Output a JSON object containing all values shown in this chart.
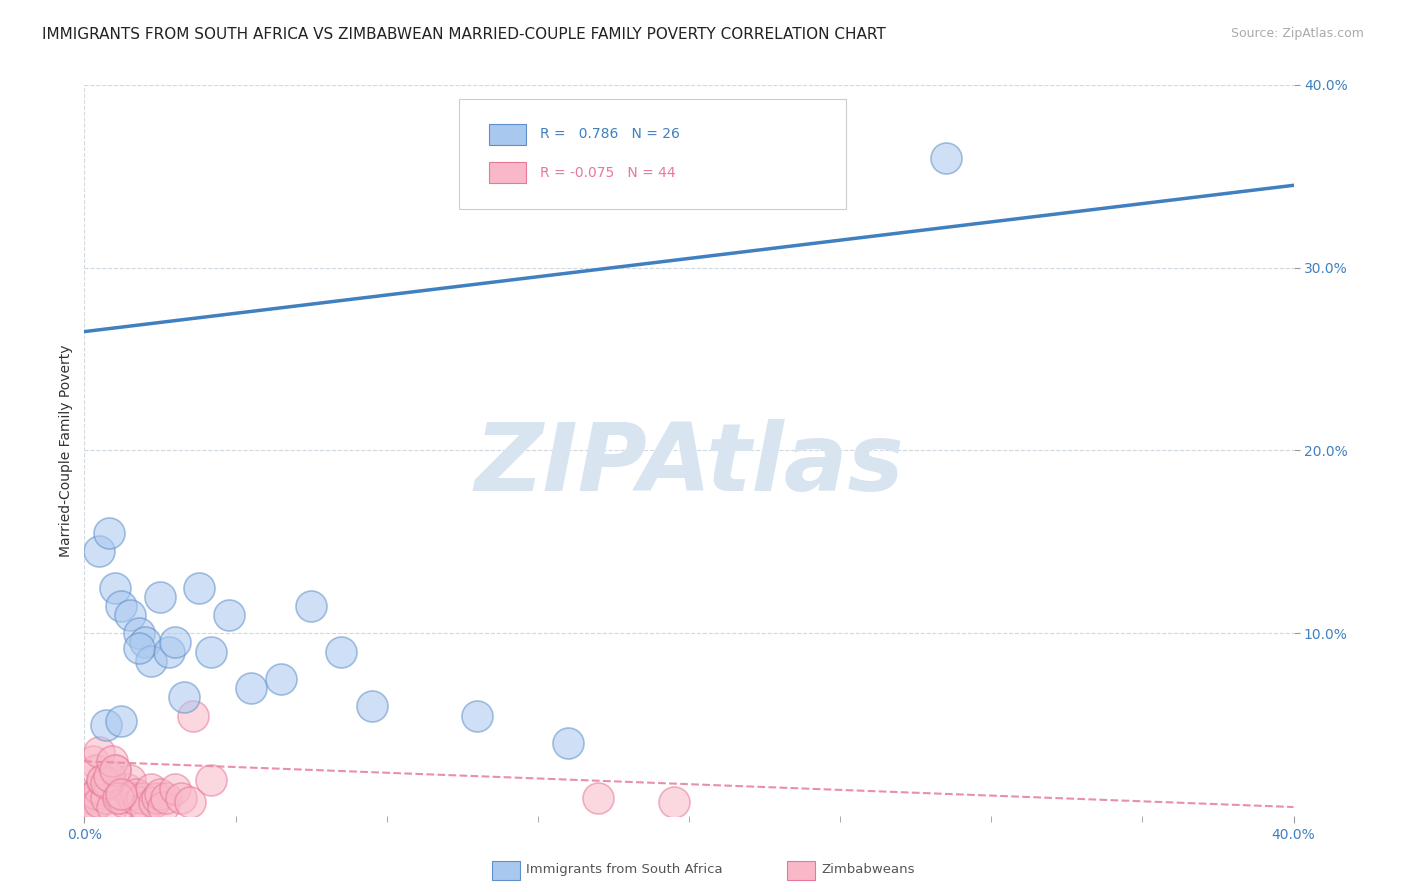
{
  "title": "IMMIGRANTS FROM SOUTH AFRICA VS ZIMBABWEAN MARRIED-COUPLE FAMILY POVERTY CORRELATION CHART",
  "source": "Source: ZipAtlas.com",
  "xlabel": "",
  "ylabel": "Married-Couple Family Poverty",
  "xlim": [
    0.0,
    0.4
  ],
  "ylim": [
    0.0,
    0.4
  ],
  "xticks_major": [
    0.0,
    0.4
  ],
  "xticks_minor": [
    0.05,
    0.1,
    0.15,
    0.2,
    0.25,
    0.3,
    0.35
  ],
  "yticks_major": [],
  "grid_yticks": [
    0.1,
    0.2,
    0.3,
    0.4
  ],
  "xtick_major_labels": [
    "0.0%",
    "40.0%"
  ],
  "right_yticks": [
    0.1,
    0.2,
    0.3,
    0.4
  ],
  "right_ytick_labels": [
    "10.0%",
    "20.0%",
    "30.0%",
    "40.0%"
  ],
  "blue_R": 0.786,
  "blue_N": 26,
  "pink_R": -0.075,
  "pink_N": 44,
  "blue_color": "#a8c8f0",
  "pink_color": "#f8b8c8",
  "blue_edge_color": "#6090c8",
  "pink_edge_color": "#e87898",
  "blue_line_color": "#4080c0",
  "pink_line_color": "#e890a8",
  "watermark_text": "ZIPAtlas",
  "watermark_color": "#d8e4f0",
  "background_color": "#ffffff",
  "grid_color": "#d0d8e0",
  "title_fontsize": 11,
  "source_fontsize": 9,
  "blue_line_x0": 0.0,
  "blue_line_y0": 0.265,
  "blue_line_x1": 0.4,
  "blue_line_y1": 0.345,
  "pink_line_x0": 0.0,
  "pink_line_y0": 0.03,
  "pink_line_x1": 0.4,
  "pink_line_y1": 0.005,
  "blue_scatter_x": [
    0.005,
    0.008,
    0.01,
    0.012,
    0.015,
    0.018,
    0.02,
    0.022,
    0.025,
    0.028,
    0.03,
    0.033,
    0.038,
    0.042,
    0.048,
    0.055,
    0.065,
    0.075,
    0.085,
    0.095,
    0.007,
    0.012,
    0.13,
    0.16,
    0.018,
    0.285
  ],
  "blue_scatter_y": [
    0.145,
    0.155,
    0.125,
    0.115,
    0.11,
    0.1,
    0.095,
    0.085,
    0.12,
    0.09,
    0.095,
    0.065,
    0.125,
    0.09,
    0.11,
    0.07,
    0.075,
    0.115,
    0.09,
    0.06,
    0.05,
    0.052,
    0.055,
    0.04,
    0.092,
    0.36
  ],
  "pink_scatter_x": [
    0.001,
    0.002,
    0.003,
    0.004,
    0.005,
    0.005,
    0.006,
    0.007,
    0.008,
    0.009,
    0.01,
    0.011,
    0.012,
    0.013,
    0.014,
    0.015,
    0.016,
    0.017,
    0.018,
    0.019,
    0.02,
    0.022,
    0.023,
    0.024,
    0.025,
    0.026,
    0.027,
    0.03,
    0.032,
    0.035,
    0.003,
    0.004,
    0.005,
    0.006,
    0.007,
    0.008,
    0.009,
    0.01,
    0.011,
    0.012,
    0.17,
    0.195,
    0.036,
    0.042
  ],
  "pink_scatter_y": [
    0.01,
    0.008,
    0.005,
    0.012,
    0.015,
    0.008,
    0.02,
    0.01,
    0.018,
    0.005,
    0.025,
    0.012,
    0.01,
    0.008,
    0.015,
    0.02,
    0.01,
    0.012,
    0.008,
    0.01,
    0.005,
    0.015,
    0.008,
    0.01,
    0.012,
    0.005,
    0.01,
    0.015,
    0.01,
    0.008,
    0.03,
    0.025,
    0.035,
    0.02,
    0.018,
    0.022,
    0.03,
    0.025,
    0.01,
    0.012,
    0.01,
    0.008,
    0.055,
    0.02
  ],
  "legend_blue_label": "R =   0.786  N = 26",
  "legend_pink_label": "R = -0.075  N = 44"
}
